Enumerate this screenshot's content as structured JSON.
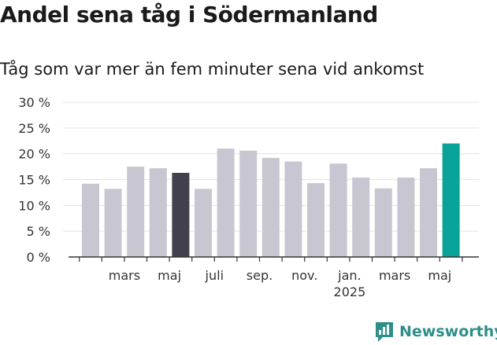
{
  "header": {
    "title": "Andel sena tåg i Södermanland",
    "subtitle": "Tåg som var mer än fem minuter sena vid ankomst"
  },
  "brand": {
    "name": "Newsworthy",
    "icon": "newsworthy-logo-icon",
    "color": "#2e8f8a"
  },
  "chart_data": {
    "type": "bar",
    "categories": [
      "2024-02",
      "2024-03",
      "2024-04",
      "2024-05",
      "2024-06",
      "2024-07",
      "2024-08",
      "2024-09",
      "2024-10",
      "2024-11",
      "2024-12",
      "2025-01",
      "2025-02",
      "2025-03",
      "2025-04",
      "2025-05",
      "2025-06"
    ],
    "values": [
      14.2,
      13.2,
      17.5,
      17.2,
      16.3,
      13.2,
      21.0,
      20.6,
      19.2,
      18.5,
      14.3,
      18.1,
      15.4,
      13.3,
      15.4,
      17.2,
      22.0
    ],
    "ylim": [
      0,
      30
    ],
    "yticks": [
      {
        "value": 0,
        "label": "0 %"
      },
      {
        "value": 5,
        "label": "5 %"
      },
      {
        "value": 10,
        "label": "10 %"
      },
      {
        "value": 15,
        "label": "15 %"
      },
      {
        "value": 20,
        "label": "20 %"
      },
      {
        "value": 25,
        "label": "25 %"
      },
      {
        "value": 30,
        "label": "30 %"
      }
    ],
    "xtick_labels": [
      {
        "at": 1.5,
        "label": "mars"
      },
      {
        "at": 3.5,
        "label": "maj"
      },
      {
        "at": 5.5,
        "label": "juli"
      },
      {
        "at": 7.5,
        "label": "sep."
      },
      {
        "at": 9.5,
        "label": "nov."
      },
      {
        "at": 11.5,
        "label": "jan.",
        "sublabel": "2025"
      },
      {
        "at": 13.5,
        "label": "mars"
      },
      {
        "at": 15.5,
        "label": "maj"
      }
    ],
    "grid": true,
    "colors": {
      "default": "#c8c7d1",
      "highlight_dark": "#42404e",
      "highlight_latest": "#0aa39a",
      "grid": "#e3e3e3",
      "axis": "#333333"
    },
    "highlight_dark_index": 4,
    "highlight_latest_index": 16
  }
}
